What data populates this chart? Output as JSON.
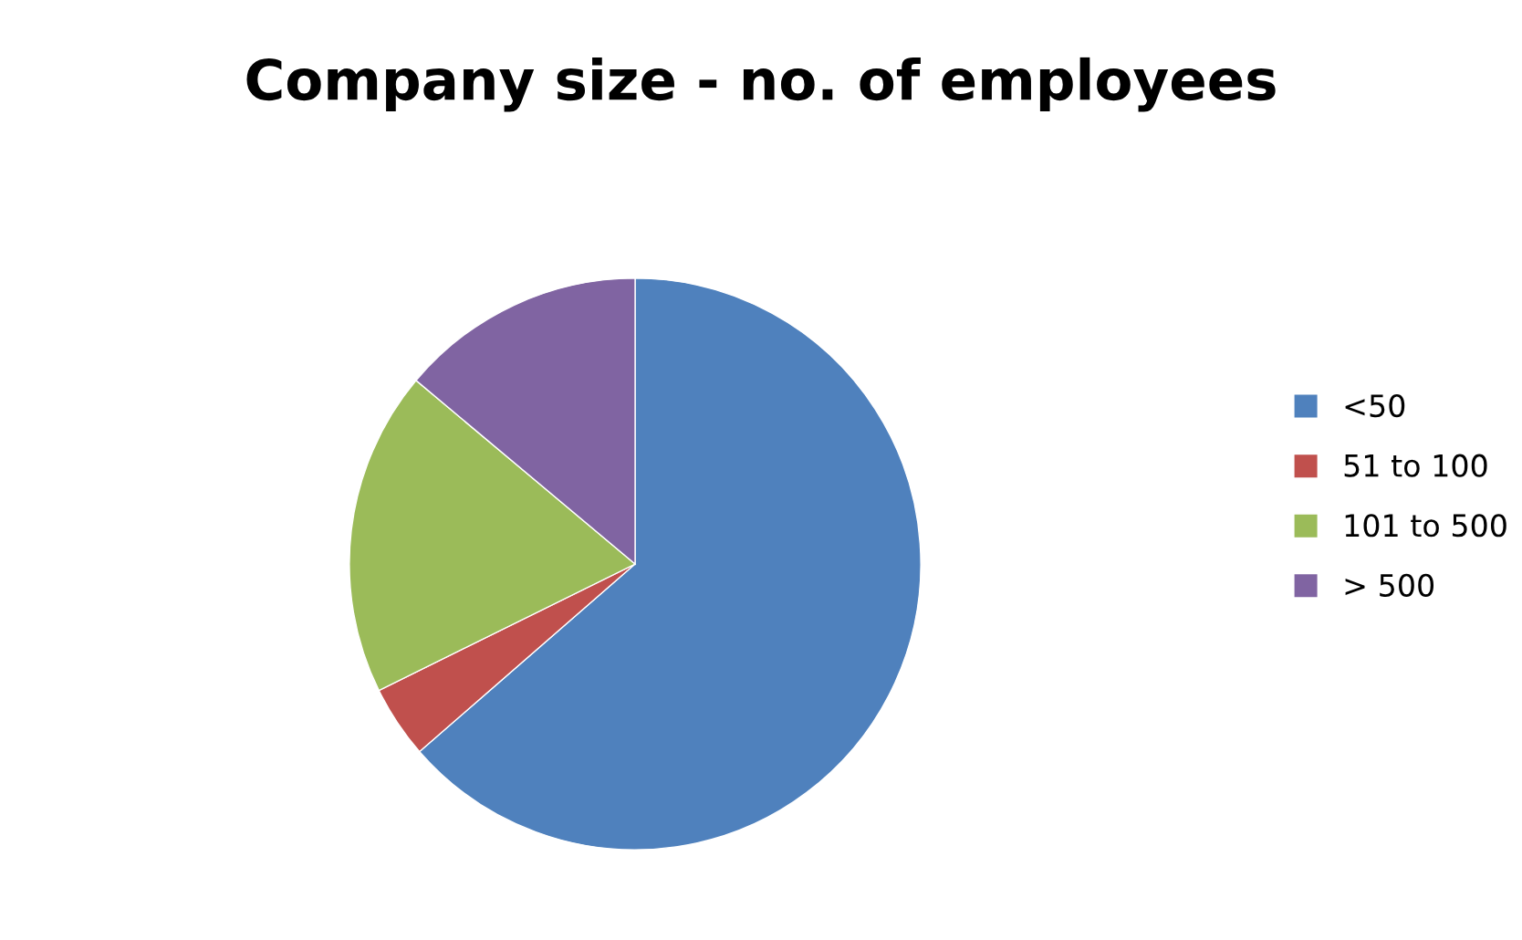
{
  "chart_data": {
    "type": "pie",
    "title": "Company size - no. of employees",
    "categories": [
      "<50",
      "51 to 100",
      "101 to 500",
      "> 500"
    ],
    "values": [
      63.6,
      4.1,
      18.4,
      13.9
    ],
    "colors": [
      "#4f81bd",
      "#c0504d",
      "#9bbb59",
      "#8064a2"
    ],
    "legend": "right"
  }
}
